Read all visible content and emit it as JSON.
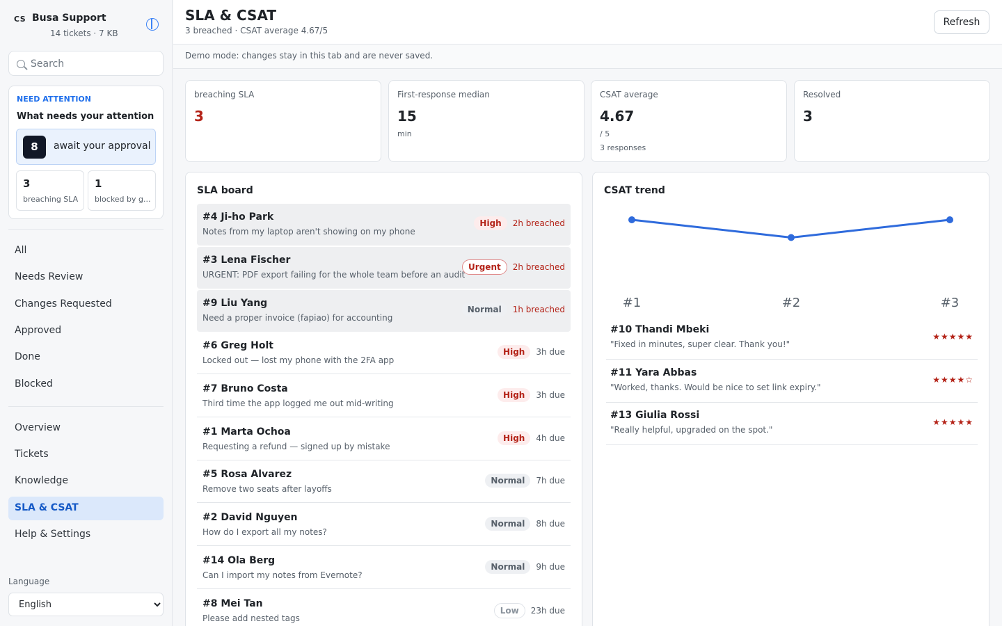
{
  "brand": {
    "logo": "CS",
    "name": "Busa Support",
    "meta": "14 tickets · 7 KB"
  },
  "search": {
    "placeholder": "Search"
  },
  "attention": {
    "eyebrow": "NEED ATTENTION",
    "title": "What needs your attention",
    "approval": {
      "count": "8",
      "label": "await your approval"
    },
    "breaching": {
      "count": "3",
      "label": "breaching SLA"
    },
    "blocked": {
      "count": "1",
      "label": "blocked by g..."
    }
  },
  "nav_filters": [
    "All",
    "Needs Review",
    "Changes Requested",
    "Approved",
    "Done",
    "Blocked"
  ],
  "nav_pages": [
    "Overview",
    "Tickets",
    "Knowledge",
    "SLA & CSAT",
    "Help & Settings"
  ],
  "active_page": "SLA & CSAT",
  "language": {
    "label": "Language",
    "value": "English"
  },
  "header": {
    "title": "SLA & CSAT",
    "subtitle": "3 breached · CSAT average 4.67/5",
    "refresh_label": "Refresh"
  },
  "demo_notice": "Demo mode: changes stay in this tab and are never saved.",
  "stats": [
    {
      "label": "breaching SLA",
      "value": "3",
      "sub": "",
      "sub2": ""
    },
    {
      "label": "First-response median",
      "value": "15",
      "sub": "min",
      "sub2": ""
    },
    {
      "label": "CSAT average",
      "value": "4.67",
      "sub": "/ 5",
      "sub2": "3 responses"
    },
    {
      "label": "Resolved",
      "value": "3",
      "sub": "",
      "sub2": ""
    }
  ],
  "sla_board": {
    "title": "SLA board",
    "rows": [
      {
        "name": "#4 Ji-ho Park",
        "desc": "Notes from my laptop aren't showing on my phone",
        "priority": "High",
        "due": "2h breached",
        "breached": true
      },
      {
        "name": "#3 Lena Fischer",
        "desc": "URGENT: PDF export failing for the whole team before an audit",
        "priority": "Urgent",
        "due": "2h breached",
        "breached": true
      },
      {
        "name": "#9 Liu Yang",
        "desc": "Need a proper invoice (fapiao) for accounting",
        "priority": "Normal",
        "due": "1h breached",
        "breached": true
      },
      {
        "name": "#6 Greg Holt",
        "desc": "Locked out — lost my phone with the 2FA app",
        "priority": "High",
        "due": "3h due",
        "breached": false
      },
      {
        "name": "#7 Bruno Costa",
        "desc": "Third time the app logged me out mid-writing",
        "priority": "High",
        "due": "3h due",
        "breached": false
      },
      {
        "name": "#1 Marta Ochoa",
        "desc": "Requesting a refund — signed up by mistake",
        "priority": "High",
        "due": "4h due",
        "breached": false
      },
      {
        "name": "#5 Rosa Alvarez",
        "desc": "Remove two seats after layoffs",
        "priority": "Normal",
        "due": "7h due",
        "breached": false
      },
      {
        "name": "#2 David Nguyen",
        "desc": "How do I export all my notes?",
        "priority": "Normal",
        "due": "8h due",
        "breached": false
      },
      {
        "name": "#14 Ola Berg",
        "desc": "Can I import my notes from Evernote?",
        "priority": "Normal",
        "due": "9h due",
        "breached": false
      },
      {
        "name": "#8 Mei Tan",
        "desc": "Please add nested tags",
        "priority": "Low",
        "due": "23h due",
        "breached": false
      }
    ]
  },
  "csat": {
    "title": "CSAT trend",
    "reviews": [
      {
        "name": "#10 Thandi Mbeki",
        "quote": "\"Fixed in minutes, super clear. Thank you!\"",
        "stars": "★★★★★",
        "rating": 5
      },
      {
        "name": "#11 Yara Abbas",
        "quote": "\"Worked, thanks. Would be nice to set link expiry.\"",
        "stars": "★★★★☆",
        "rating": 4
      },
      {
        "name": "#13 Giulia Rossi",
        "quote": "\"Really helpful, upgraded on the spot.\"",
        "stars": "★★★★★",
        "rating": 5
      }
    ]
  },
  "chart_data": {
    "type": "line",
    "categories": [
      "#1",
      "#2",
      "#3"
    ],
    "values": [
      5,
      4,
      5
    ],
    "title": "CSAT trend",
    "xlabel": "",
    "ylabel": "",
    "ylim": [
      0,
      5
    ],
    "grid": false,
    "color": "#2f6bdc"
  },
  "colors": {
    "accent": "#1559c6",
    "danger": "#b42318",
    "line": "#2f6bdc"
  }
}
